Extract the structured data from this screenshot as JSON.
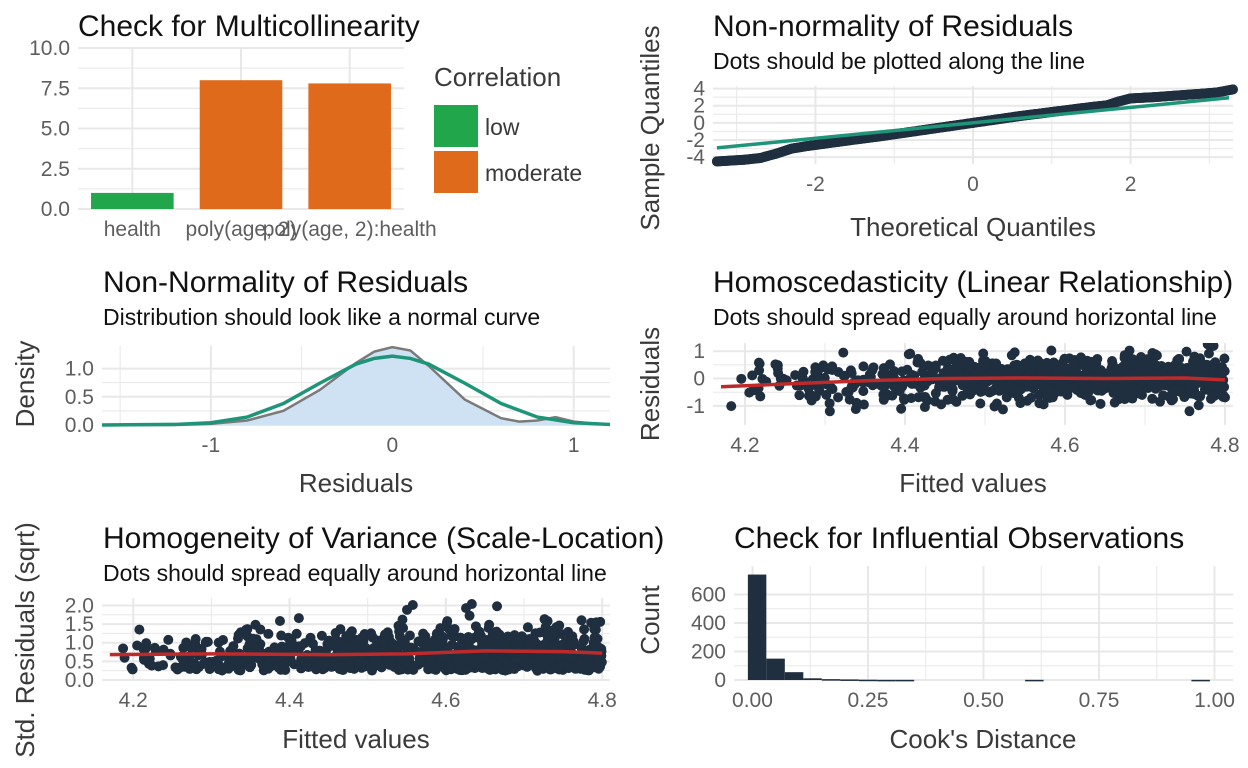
{
  "colors": {
    "low": "#22A64B",
    "moderate": "#E06A1C",
    "dots": "#1F2F3F",
    "line_green": "#1E9478",
    "line_red": "#BE2A2A",
    "density_fill": "#CFE2F3",
    "density_line": "#7A7A7A",
    "grid": "#E8E8E8",
    "hist": "#1F2F3F"
  },
  "chart_data": [
    {
      "id": "multicollinearity",
      "type": "bar",
      "title": "Check for Multicollinearity",
      "categories": [
        "health",
        "poly(age, 2)",
        "poly(age, 2):health"
      ],
      "values": [
        1.0,
        8.0,
        7.8
      ],
      "groups": [
        "low",
        "moderate",
        "moderate"
      ],
      "ylim": [
        0,
        10
      ],
      "yticks": [
        "0.0",
        "2.5",
        "5.0",
        "7.5",
        "10.0"
      ],
      "legend": {
        "title": "Correlation",
        "entries": [
          "low",
          "moderate"
        ],
        "position": "right"
      },
      "grid": true
    },
    {
      "id": "qq",
      "type": "scatter",
      "title": "Non-normality of Residuals",
      "subtitle": "Dots should be plotted along the line",
      "xlabel": "Theoretical Quantiles",
      "ylabel": "Sample Quantiles",
      "xlim": [
        -3.3,
        3.3
      ],
      "ylim": [
        -4.8,
        4.3
      ],
      "xticks": [
        -2,
        0,
        2
      ],
      "yticks": [
        -4,
        -2,
        0,
        2,
        4
      ],
      "reference_line": {
        "slope": 0.9,
        "intercept": 0
      },
      "points": [
        [
          -3.25,
          -4.5
        ],
        [
          -2.9,
          -4.3
        ],
        [
          -2.7,
          -4.1
        ],
        [
          -2.5,
          -3.6
        ],
        [
          -2.3,
          -3.0
        ],
        [
          -2.1,
          -2.7
        ],
        [
          -1.9,
          -2.45
        ],
        [
          -1.7,
          -2.2
        ],
        [
          -1.5,
          -1.95
        ],
        [
          -1.2,
          -1.6
        ],
        [
          -0.9,
          -1.2
        ],
        [
          -0.6,
          -0.8
        ],
        [
          -0.3,
          -0.4
        ],
        [
          0.0,
          0.0
        ],
        [
          0.3,
          0.4
        ],
        [
          0.6,
          0.8
        ],
        [
          0.9,
          1.15
        ],
        [
          1.2,
          1.5
        ],
        [
          1.5,
          1.85
        ],
        [
          1.7,
          2.05
        ],
        [
          1.85,
          2.5
        ],
        [
          2.0,
          2.85
        ],
        [
          2.3,
          3.0
        ],
        [
          2.6,
          3.2
        ],
        [
          2.9,
          3.4
        ],
        [
          3.1,
          3.55
        ],
        [
          3.3,
          3.9
        ]
      ],
      "grid": true
    },
    {
      "id": "density",
      "type": "area",
      "title": "Non-Normality of Residuals",
      "subtitle": "Distribution should look like a normal curve",
      "xlabel": "Residuals",
      "ylabel": "Density",
      "xlim": [
        -1.6,
        1.2
      ],
      "ylim": [
        0,
        1.4
      ],
      "xticks": [
        -1,
        0,
        1
      ],
      "yticks": [
        "0.0",
        "0.5",
        "1.0"
      ],
      "series": [
        {
          "name": "empirical",
          "x": [
            -1.6,
            -1.2,
            -1.0,
            -0.8,
            -0.6,
            -0.4,
            -0.2,
            -0.1,
            0.0,
            0.1,
            0.2,
            0.4,
            0.6,
            0.7,
            0.8,
            0.9,
            1.0,
            1.2
          ],
          "y": [
            0.0,
            0.0,
            0.02,
            0.08,
            0.25,
            0.62,
            1.1,
            1.3,
            1.38,
            1.32,
            1.05,
            0.45,
            0.12,
            0.06,
            0.08,
            0.14,
            0.06,
            0.0
          ]
        },
        {
          "name": "normal",
          "x": [
            -1.6,
            -1.2,
            -1.0,
            -0.8,
            -0.6,
            -0.4,
            -0.2,
            -0.1,
            0.0,
            0.1,
            0.2,
            0.4,
            0.6,
            0.8,
            1.0,
            1.2
          ],
          "y": [
            0.0,
            0.01,
            0.04,
            0.14,
            0.38,
            0.74,
            1.08,
            1.18,
            1.22,
            1.18,
            1.08,
            0.74,
            0.38,
            0.14,
            0.04,
            0.01
          ]
        }
      ],
      "grid": true
    },
    {
      "id": "homoscedasticity",
      "type": "scatter",
      "title": "Homoscedasticity (Linear Relationship)",
      "subtitle": "Dots should spread equally around horizontal line",
      "xlabel": "Fitted values",
      "ylabel": "Residuals",
      "xlim": [
        4.16,
        4.81
      ],
      "ylim": [
        -1.7,
        1.3
      ],
      "xticks": [
        4.2,
        4.4,
        4.6,
        4.8
      ],
      "yticks": [
        -1,
        0,
        1
      ],
      "smooth": [
        [
          4.17,
          -0.3
        ],
        [
          4.25,
          -0.2
        ],
        [
          4.35,
          -0.08
        ],
        [
          4.45,
          0.0
        ],
        [
          4.55,
          0.02
        ],
        [
          4.65,
          0.0
        ],
        [
          4.75,
          0.02
        ],
        [
          4.8,
          -0.05
        ]
      ],
      "grid": true
    },
    {
      "id": "scale-location",
      "type": "scatter",
      "title": "Homogeneity of Variance (Scale-Location)",
      "subtitle": "Dots should spread equally around horizontal line",
      "xlabel": "Fitted values",
      "ylabel": "Std. Residuals (sqrt)",
      "xlim": [
        4.16,
        4.81
      ],
      "ylim": [
        0,
        2.2
      ],
      "xticks": [
        4.2,
        4.4,
        4.6,
        4.8
      ],
      "yticks": [
        "0.0",
        "0.5",
        "1.0",
        "1.5",
        "2.0"
      ],
      "smooth": [
        [
          4.17,
          0.68
        ],
        [
          4.3,
          0.7
        ],
        [
          4.45,
          0.68
        ],
        [
          4.55,
          0.7
        ],
        [
          4.65,
          0.78
        ],
        [
          4.75,
          0.76
        ],
        [
          4.8,
          0.72
        ]
      ],
      "grid": true
    },
    {
      "id": "influence",
      "type": "bar",
      "title": "Check for Influential Observations",
      "xlabel": "Cook's Distance",
      "ylabel": "Count",
      "xlim": [
        -0.04,
        1.04
      ],
      "ylim": [
        0,
        800
      ],
      "xticks": [
        "0.00",
        "0.25",
        "0.50",
        "0.75",
        "1.00"
      ],
      "yticks": [
        0,
        200,
        400,
        600
      ],
      "bins": [
        [
          -0.01,
          0.03,
          740
        ],
        [
          0.03,
          0.07,
          150
        ],
        [
          0.07,
          0.11,
          55
        ],
        [
          0.11,
          0.15,
          12
        ],
        [
          0.15,
          0.19,
          6
        ],
        [
          0.19,
          0.23,
          4
        ],
        [
          0.23,
          0.27,
          2
        ],
        [
          0.27,
          0.31,
          1
        ],
        [
          0.31,
          0.35,
          1
        ],
        [
          0.59,
          0.63,
          1
        ],
        [
          0.95,
          0.99,
          1
        ]
      ],
      "grid": true
    }
  ]
}
